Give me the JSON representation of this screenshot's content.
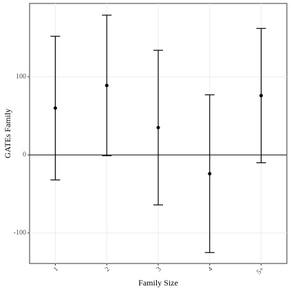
{
  "chart_data": {
    "type": "errorbar",
    "xlabel": "Family Size",
    "ylabel": "GATEs Family",
    "categories": [
      "1",
      "2",
      "3",
      "4",
      "5+"
    ],
    "values": [
      60,
      89,
      35,
      -24,
      76
    ],
    "errors": [
      92,
      90,
      99,
      101,
      86
    ],
    "color": "#000000",
    "hline": 0,
    "ylim": [
      -139,
      194
    ],
    "yticks": [
      -100,
      0,
      100
    ],
    "grid": true
  }
}
